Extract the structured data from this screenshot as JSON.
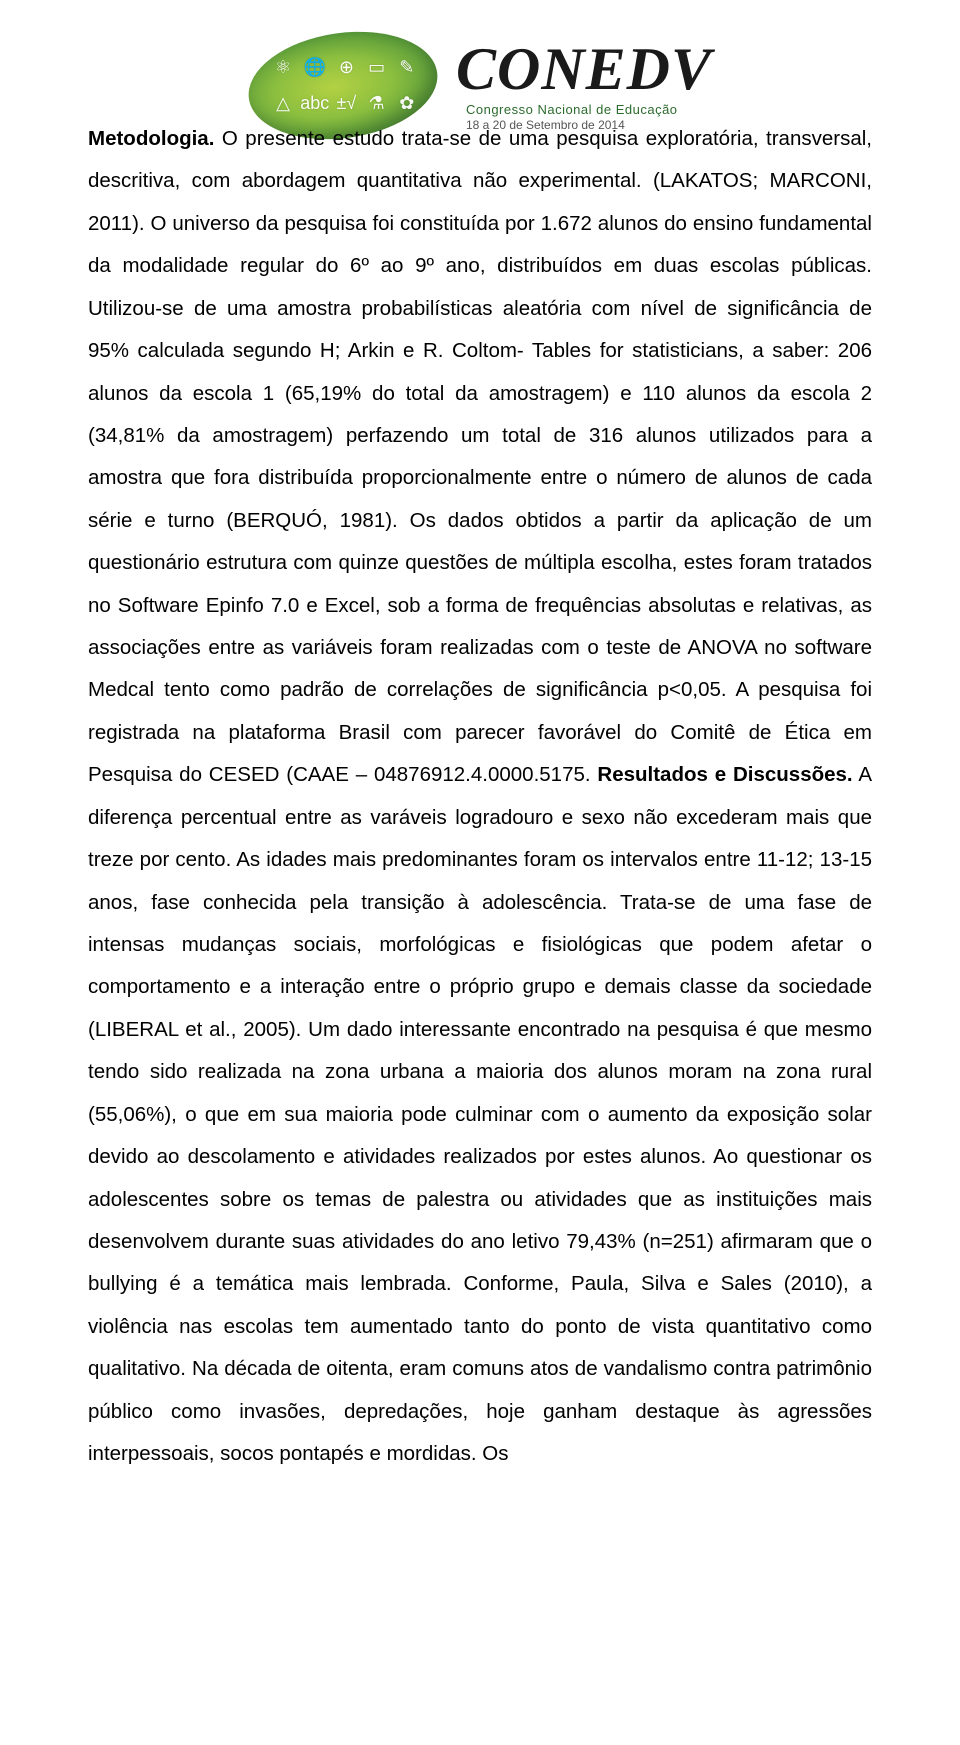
{
  "header": {
    "brand": "CONEDV",
    "subtitle": "Congresso Nacional de Educação",
    "dates": "18 a 20 de Setembro de 2014"
  },
  "paragraph": {
    "s1_bold": "Metodologia.",
    "s1_rest": " O presente estudo trata-se de uma pesquisa exploratória, transversal, descritiva, com abordagem quantitativa não experimental. (LAKATOS; MARCONI, 2011). O universo da pesquisa foi constituída por 1.672 alunos do ensino fundamental da modalidade regular do 6º ao 9º ano, distribuídos em duas escolas públicas. Utilizou-se de uma amostra probabilísticas aleatória com nível de significância de 95% calculada segundo H; Arkin e R. Coltom- Tables for statisticians, a saber: 206 alunos da escola 1 (65,19% do total da amostragem) e 110 alunos da escola 2 (34,81% da amostragem) perfazendo um total de 316 alunos utilizados para a amostra que fora distribuída proporcionalmente entre o número de alunos de cada série e turno (BERQUÓ, 1981). Os dados obtidos a partir da aplicação de um questionário estrutura com quinze questões de múltipla escolha, estes foram tratados no Software Epinfo 7.0 e Excel, sob a forma de frequências absolutas e relativas, as associações entre as variáveis foram realizadas com o teste de ANOVA no software Medcal tento como padrão de correlações de significância p<0,05. A pesquisa foi registrada na plataforma Brasil com parecer favorável do Comitê de Ética em Pesquisa do CESED (CAAE – 04876912.4.0000.5175. ",
    "s2_bold": "Resultados e Discussões.",
    "s2_rest": " A diferença percentual entre as varáveis logradouro e sexo não excederam mais que treze por cento. As idades mais predominantes foram os intervalos entre 11-12; 13-15 anos, fase conhecida pela transição à adolescência. Trata-se de uma fase de intensas mudanças sociais, morfológicas e fisiológicas que podem afetar o comportamento e a interação entre o próprio grupo e demais classe da sociedade (LIBERAL et al., 2005). Um dado interessante encontrado na pesquisa é que mesmo tendo sido realizada na zona urbana a maioria dos alunos moram na zona rural (55,06%), o que em sua maioria pode culminar com o aumento da exposição solar devido ao descolamento e atividades realizados por estes alunos. Ao questionar os adolescentes sobre os temas de palestra ou atividades que as instituições mais desenvolvem durante suas atividades do ano letivo 79,43% (n=251) afirmaram que o bullying é a temática mais lembrada. Conforme, Paula, Silva e Sales (2010), a violência nas escolas tem aumentado tanto do ponto de vista quantitativo como qualitativo. Na década de oitenta, eram comuns atos de vandalismo contra patrimônio público como invasões, depredações, hoje ganham destaque às agressões interpessoais, socos pontapés e mordidas. Os"
  }
}
